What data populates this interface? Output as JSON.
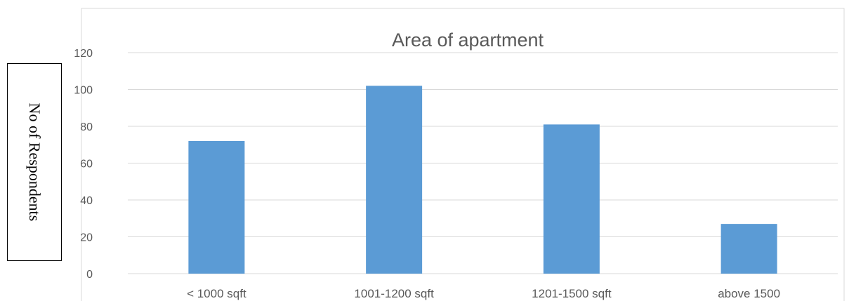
{
  "chart_data": {
    "type": "bar",
    "title": "Area of apartment",
    "xlabel": "",
    "ylabel": "No of Respondents",
    "categories": [
      "< 1000 sqft",
      "1001-1200 sqft",
      "1201-1500 sqft",
      "above 1500"
    ],
    "values": [
      72,
      102,
      81,
      27
    ],
    "ylim": [
      0,
      120
    ],
    "yticks": [
      0,
      20,
      40,
      60,
      80,
      100,
      120
    ],
    "grid": true,
    "legend": "none",
    "bar_color": "#5b9bd5"
  }
}
